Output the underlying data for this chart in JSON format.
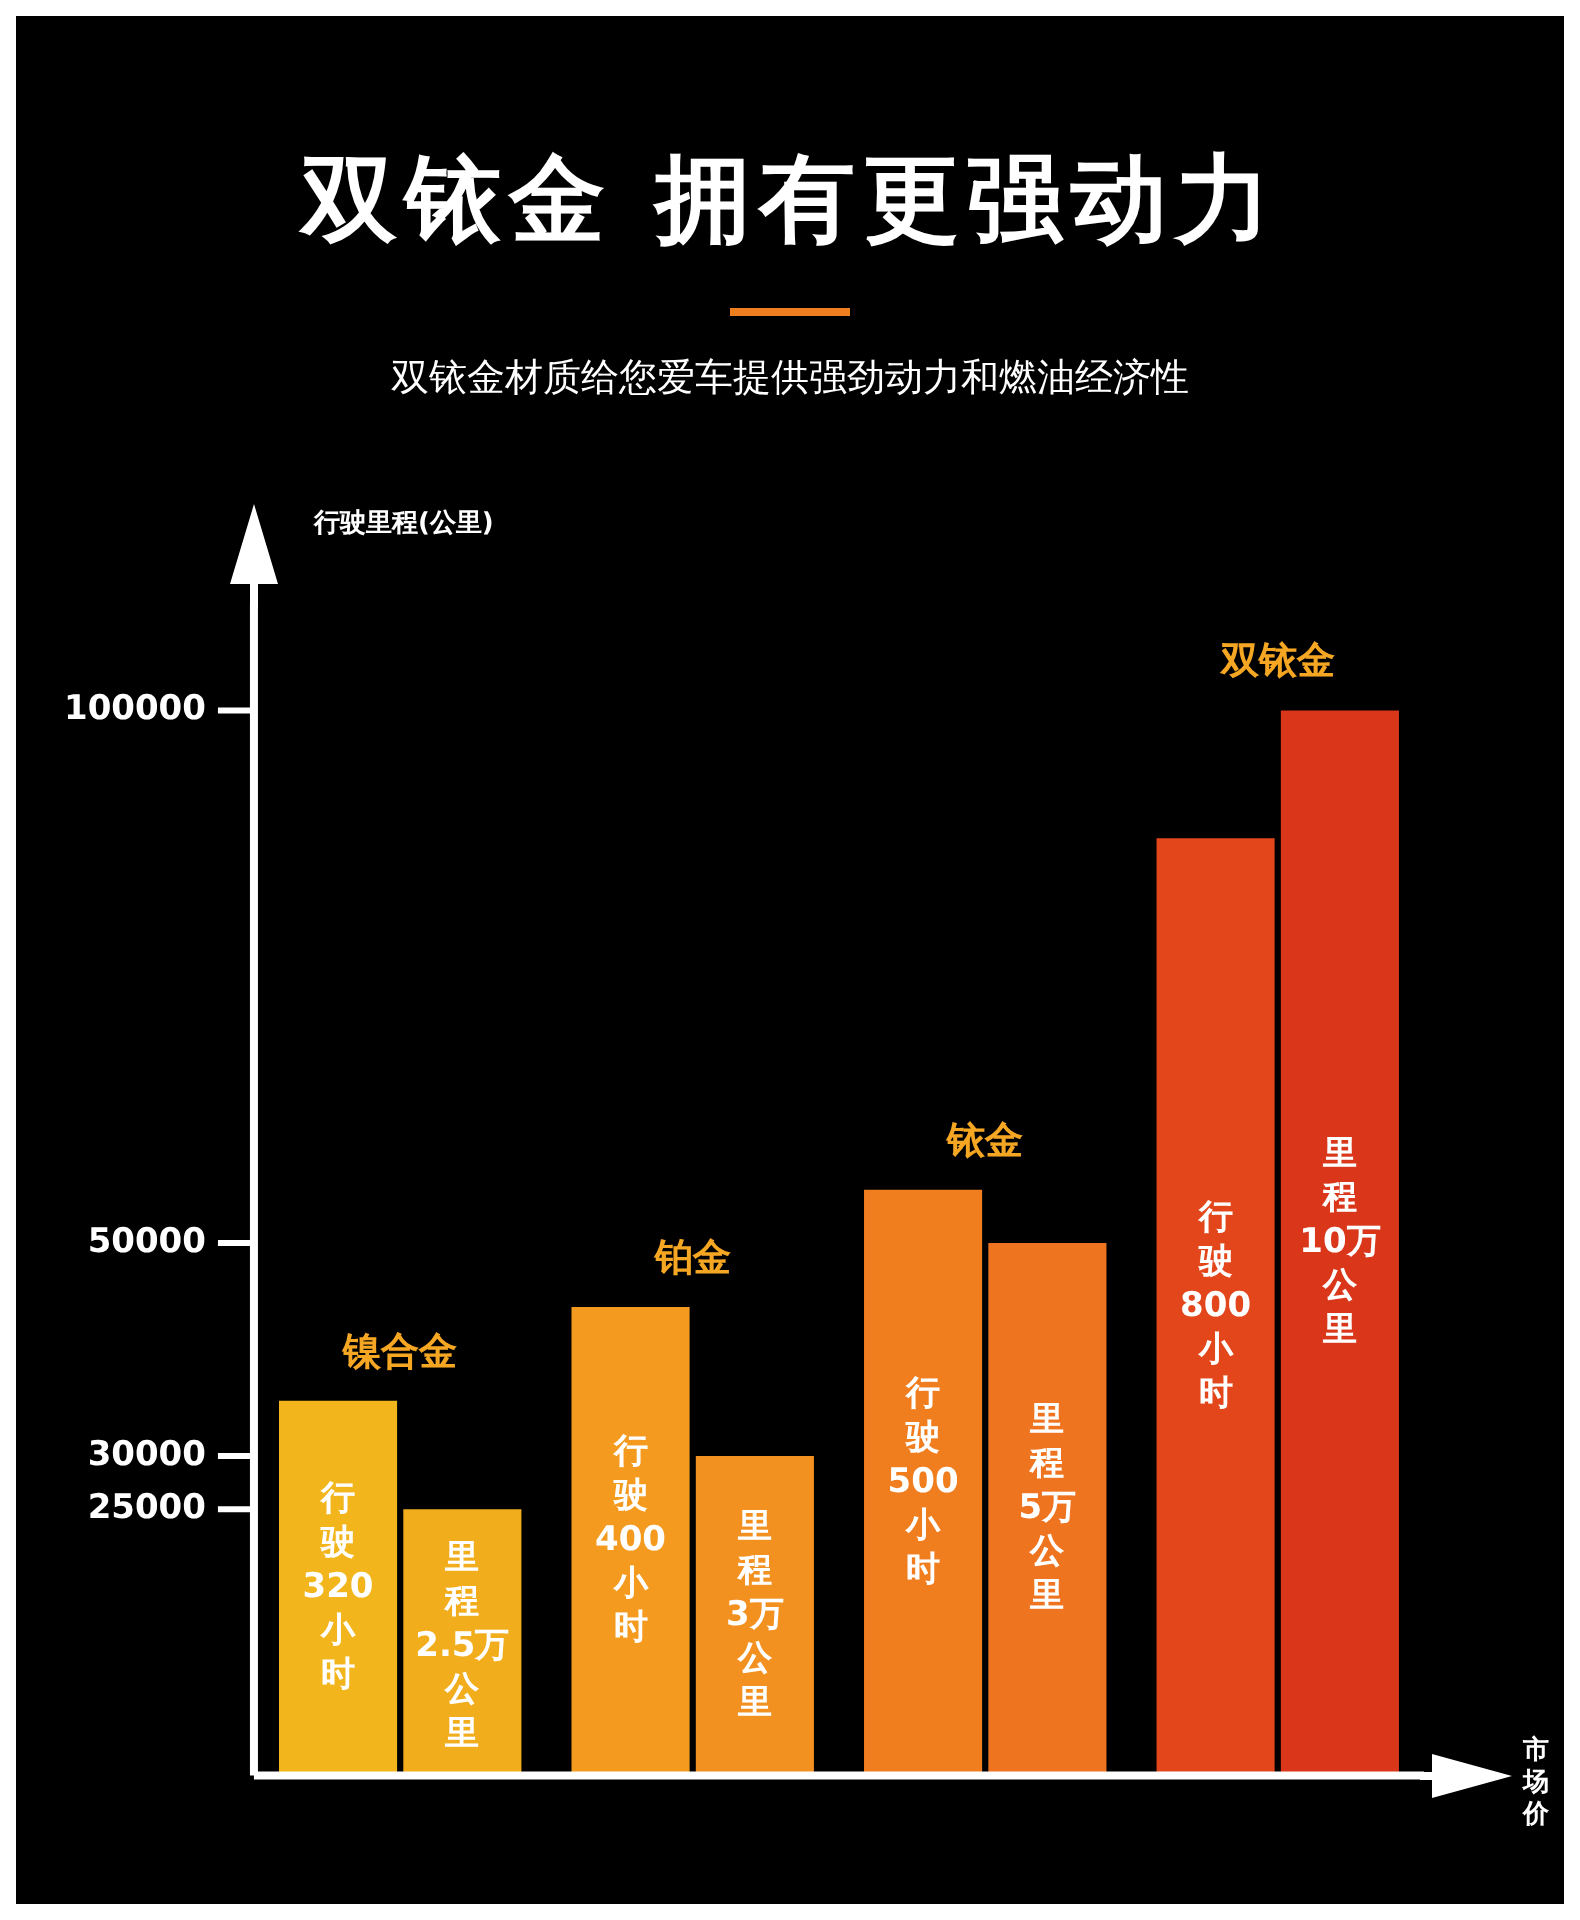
{
  "chart_data": {
    "type": "bar",
    "title": "双铱金 拥有更强动力",
    "subtitle": "双铱金材质给您爱车提供强劲动力和燃油经济性",
    "ylabel": "行驶里程(公里)",
    "xlabel": "市场价",
    "categories": [
      "镍合金",
      "铂金",
      "铱金",
      "双铱金"
    ],
    "series": [
      {
        "axis": "y2",
        "colors": [
          "#f2b61c",
          "#f39a1f",
          "#f07d1e",
          "#e2461a"
        ],
        "values": [
          320,
          400,
          500,
          800
        ],
        "value_labels": [
          "行驶320小时",
          "行驶400小时",
          "行驶500小时",
          "行驶800小时"
        ]
      },
      {
        "colors": [
          "#f2ad1c",
          "#f29020",
          "#ef7420",
          "#d9361a"
        ],
        "values": [
          25000,
          30000,
          50000,
          100000
        ],
        "value_labels": [
          "里程2.5万公里",
          "里程3万公里",
          "里程5万公里",
          "里程10万公里"
        ]
      }
    ],
    "ylim": [
      0,
      110000
    ],
    "yticks": [
      25000,
      30000,
      50000,
      100000
    ],
    "grid": false,
    "legend": false
  }
}
